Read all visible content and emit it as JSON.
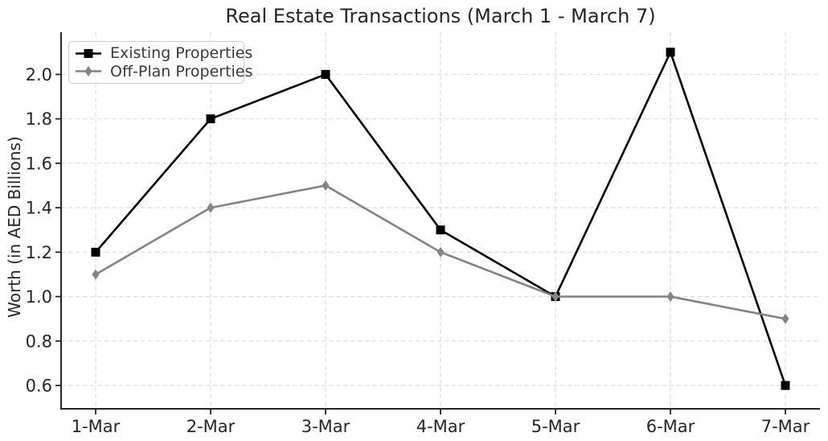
{
  "chart_data": {
    "type": "line",
    "title": "Real Estate Transactions (March 1 - March 7)",
    "xlabel": "",
    "ylabel": "Worth (in AED Billions)",
    "categories": [
      "1-Mar",
      "2-Mar",
      "3-Mar",
      "4-Mar",
      "5-Mar",
      "6-Mar",
      "7-Mar"
    ],
    "series": [
      {
        "name": "Existing Properties",
        "values": [
          1.2,
          1.8,
          2.0,
          1.3,
          1.0,
          2.1,
          0.6
        ],
        "color": "#000000",
        "marker": "square"
      },
      {
        "name": "Off-Plan Properties",
        "values": [
          1.1,
          1.4,
          1.5,
          1.2,
          1.0,
          1.0,
          0.9
        ],
        "color": "#848484",
        "marker": "diamond"
      }
    ],
    "yticks": [
      0.6,
      0.8,
      1.0,
      1.2,
      1.4,
      1.6,
      1.8,
      2.0
    ],
    "ylim": [
      0.495,
      2.19
    ],
    "grid": true,
    "grid_style": "dashed",
    "legend_position": "upper-left",
    "colors": {
      "text": "#262626",
      "grid": "#dcdcdc",
      "spine": "#262626",
      "legend_border": "#cccccc"
    }
  }
}
